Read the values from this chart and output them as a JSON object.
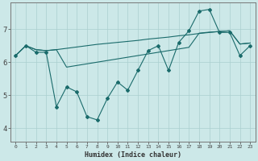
{
  "xlabel": "Humidex (Indice chaleur)",
  "background_color": "#cce8e8",
  "grid_color": "#aacfcf",
  "line_color": "#1a6b6b",
  "xlim": [
    -0.5,
    23.5
  ],
  "ylim": [
    3.6,
    7.8
  ],
  "yticks": [
    4,
    5,
    6,
    7
  ],
  "xticks": [
    0,
    1,
    2,
    3,
    4,
    5,
    6,
    7,
    8,
    9,
    10,
    11,
    12,
    13,
    14,
    15,
    16,
    17,
    18,
    19,
    20,
    21,
    22,
    23
  ],
  "series_upper_x": [
    0,
    1,
    2,
    3,
    4,
    5,
    6,
    7,
    8,
    9,
    10,
    11,
    12,
    13,
    14,
    15,
    16,
    17,
    18,
    19,
    20,
    21,
    22,
    23
  ],
  "series_upper_y": [
    6.2,
    6.5,
    6.38,
    6.35,
    6.38,
    6.42,
    6.46,
    6.5,
    6.54,
    6.57,
    6.6,
    6.63,
    6.66,
    6.7,
    6.73,
    6.76,
    6.8,
    6.83,
    6.87,
    6.9,
    6.93,
    6.95,
    6.55,
    6.58
  ],
  "series_lower_x": [
    0,
    1,
    2,
    3,
    4,
    5,
    6,
    7,
    8,
    9,
    10,
    11,
    12,
    13,
    14,
    15,
    16,
    17,
    18,
    19,
    20,
    21,
    22,
    23
  ],
  "series_lower_y": [
    6.2,
    6.5,
    6.38,
    6.35,
    6.38,
    5.85,
    5.9,
    5.95,
    6.0,
    6.05,
    6.1,
    6.15,
    6.2,
    6.25,
    6.3,
    6.35,
    6.4,
    6.45,
    6.88,
    6.91,
    6.93,
    6.95,
    6.55,
    6.58
  ],
  "series_zigzag_x": [
    0,
    1,
    2,
    3,
    4,
    5,
    6,
    7,
    8,
    9,
    10,
    11,
    12,
    13,
    14,
    15,
    16,
    17,
    18,
    19,
    20,
    21,
    22,
    23
  ],
  "series_zigzag_y": [
    6.2,
    6.5,
    6.3,
    6.3,
    4.65,
    5.25,
    5.1,
    4.35,
    4.25,
    4.9,
    5.4,
    5.15,
    5.75,
    6.35,
    6.5,
    5.75,
    6.6,
    6.95,
    7.55,
    7.6,
    6.9,
    6.9,
    6.2,
    6.5
  ]
}
